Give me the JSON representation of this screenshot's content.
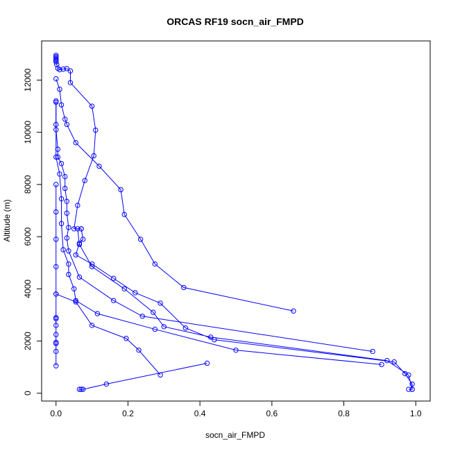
{
  "chart_data": {
    "type": "line",
    "title": "ORCAS RF19 socn_air_FMPD",
    "xlabel": "socn_air_FMPD",
    "ylabel": "Altitude (m)",
    "xlim": [
      -0.04,
      1.04
    ],
    "ylim": [
      -300,
      13500
    ],
    "x_ticks": [
      0.0,
      0.2,
      0.4,
      0.6,
      0.8,
      1.0
    ],
    "x_tick_labels": [
      "0.0",
      "0.2",
      "0.4",
      "0.6",
      "0.8",
      "1.0"
    ],
    "y_ticks": [
      0,
      2000,
      4000,
      6000,
      8000,
      10000,
      12000
    ],
    "y_tick_labels": [
      "0",
      "2000",
      "4000",
      "6000",
      "8000",
      "10000",
      "12000"
    ],
    "grid": false,
    "legend": "none",
    "series_color": "#0000ff",
    "marker": "open-circle",
    "series": [
      {
        "values": [
          [
            0.0,
            12950
          ],
          [
            0.0,
            12900
          ],
          [
            0.0,
            12850
          ],
          [
            0.0,
            12800
          ],
          [
            0.0,
            12750
          ],
          [
            0.0,
            12700
          ],
          [
            0.002,
            12600
          ],
          [
            0.005,
            12450
          ],
          [
            0.01,
            12400
          ],
          [
            0.02,
            12420
          ],
          [
            0.03,
            12440
          ],
          [
            0.04,
            12350
          ],
          [
            0.04,
            11900
          ],
          [
            0.1,
            11000
          ],
          [
            0.11,
            10080
          ],
          [
            0.105,
            9100
          ],
          [
            0.08,
            8150
          ],
          [
            0.06,
            7200
          ],
          [
            0.05,
            6300
          ],
          [
            0.07,
            6300
          ],
          [
            0.075,
            5900
          ],
          [
            0.065,
            5750
          ],
          [
            0.055,
            5300
          ],
          [
            0.1,
            4950
          ],
          [
            0.16,
            4400
          ],
          [
            0.22,
            3850
          ],
          [
            0.29,
            3450
          ],
          [
            0.36,
            2500
          ],
          [
            0.44,
            2050
          ],
          [
            0.94,
            1200
          ],
          [
            0.97,
            750
          ],
          [
            0.99,
            350
          ],
          [
            0.99,
            150
          ],
          [
            0.98,
            150
          ],
          [
            0.99,
            150
          ],
          [
            0.98,
            700
          ],
          [
            0.92,
            1250
          ],
          [
            0.43,
            2150
          ],
          [
            0.3,
            2550
          ],
          [
            0.27,
            3100
          ],
          [
            0.19,
            4000
          ],
          [
            0.1,
            4850
          ],
          [
            0.065,
            5700
          ],
          [
            0.06,
            6300
          ],
          [
            0.07,
            6300
          ]
        ]
      },
      {
        "values": [
          [
            0.0,
            12050
          ],
          [
            0.01,
            11650
          ],
          [
            0.015,
            11050
          ],
          [
            0.025,
            10500
          ],
          [
            0.03,
            10300
          ],
          [
            0.055,
            9600
          ],
          [
            0.12,
            8700
          ],
          [
            0.18,
            7800
          ],
          [
            0.19,
            6850
          ],
          [
            0.235,
            5900
          ],
          [
            0.275,
            4950
          ],
          [
            0.355,
            4050
          ],
          [
            0.66,
            3150
          ]
        ]
      },
      {
        "values": [
          [
            0.0,
            11200
          ],
          [
            0.0,
            10100
          ],
          [
            0.005,
            9350
          ],
          [
            0.005,
            9050
          ],
          [
            0.015,
            8800
          ],
          [
            0.025,
            8300
          ],
          [
            0.025,
            7850
          ],
          [
            0.03,
            7350
          ],
          [
            0.03,
            6900
          ],
          [
            0.035,
            6350
          ],
          [
            0.03,
            5950
          ],
          [
            0.035,
            5450
          ],
          [
            0.065,
            4450
          ],
          [
            0.16,
            3550
          ],
          [
            0.24,
            2950
          ],
          [
            0.88,
            1600
          ]
        ]
      },
      {
        "values": [
          [
            0.0,
            11150
          ],
          [
            0.0,
            10300
          ],
          [
            0.0,
            9050
          ],
          [
            0.01,
            8400
          ],
          [
            0.015,
            7450
          ],
          [
            0.015,
            6500
          ],
          [
            0.02,
            5500
          ],
          [
            0.035,
            4950
          ],
          [
            0.035,
            4550
          ],
          [
            0.05,
            4000
          ],
          [
            0.055,
            3550
          ],
          [
            0.115,
            3050
          ],
          [
            0.275,
            2450
          ],
          [
            0.5,
            1650
          ],
          [
            0.905,
            1100
          ]
        ]
      },
      {
        "values": [
          [
            0.0,
            8000
          ],
          [
            0.0,
            6950
          ],
          [
            0.0,
            5900
          ],
          [
            0.0,
            4850
          ],
          [
            0.0,
            3800
          ],
          [
            0.0,
            2900
          ],
          [
            0.0,
            2850
          ],
          [
            0.0,
            2600
          ],
          [
            0.0,
            2250
          ],
          [
            0.0,
            1950
          ],
          [
            0.0,
            1900
          ],
          [
            0.0,
            1600
          ],
          [
            0.0,
            1050
          ]
        ]
      },
      {
        "values": [
          [
            0.0,
            3800
          ],
          [
            0.055,
            3500
          ],
          [
            0.1,
            2600
          ],
          [
            0.195,
            2100
          ],
          [
            0.23,
            1650
          ],
          [
            0.29,
            700
          ]
        ]
      },
      {
        "values": [
          [
            0.42,
            1150
          ],
          [
            0.14,
            350
          ],
          [
            0.075,
            150
          ],
          [
            0.07,
            150
          ],
          [
            0.065,
            150
          ]
        ]
      }
    ]
  }
}
